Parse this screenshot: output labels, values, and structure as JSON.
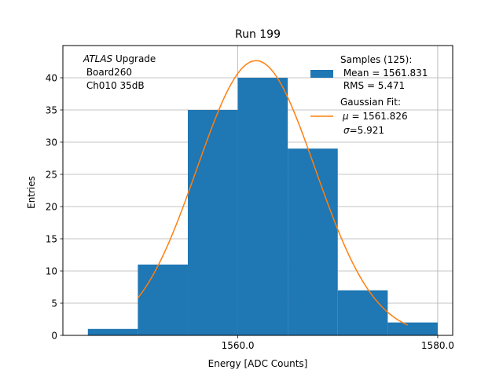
{
  "chart_data": {
    "type": "bar",
    "title": "Run 199",
    "xlabel": "Energy [ADC Counts]",
    "ylabel": "Entries",
    "xlim": [
      1542.5,
      1581.5
    ],
    "ylim": [
      0,
      45
    ],
    "grid": true,
    "bins": [
      {
        "lo": 1545,
        "hi": 1550,
        "count": 1
      },
      {
        "lo": 1550,
        "hi": 1555,
        "count": 11
      },
      {
        "lo": 1555,
        "hi": 1560,
        "count": 35
      },
      {
        "lo": 1560,
        "hi": 1565,
        "count": 40
      },
      {
        "lo": 1565,
        "hi": 1570,
        "count": 29
      },
      {
        "lo": 1570,
        "hi": 1575,
        "count": 7
      },
      {
        "lo": 1575,
        "hi": 1580,
        "count": 2
      }
    ],
    "xticks": [
      {
        "value": 1560,
        "label": "1560.0"
      },
      {
        "value": 1580,
        "label": "1580.0"
      }
    ],
    "yticks": [
      {
        "value": 0,
        "label": "0"
      },
      {
        "value": 5,
        "label": "5"
      },
      {
        "value": 10,
        "label": "10"
      },
      {
        "value": 15,
        "label": "15"
      },
      {
        "value": 20,
        "label": "20"
      },
      {
        "value": 25,
        "label": "25"
      },
      {
        "value": 30,
        "label": "30"
      },
      {
        "value": 35,
        "label": "35"
      },
      {
        "value": 40,
        "label": "40"
      }
    ],
    "fit": {
      "name": "Gaussian Fit",
      "amplitude": 42.65,
      "mu": 1561.826,
      "sigma": 5.921,
      "x_range": [
        1550,
        1577
      ]
    },
    "legend": {
      "placement": "top-right",
      "hist_lines": [
        "Samples (125):",
        " Mean = 1561.831",
        " RMS = 5.471"
      ],
      "fit_lines": [
        "Gaussian Fit:",
        " = 1561.826",
        "=5.921"
      ],
      "fit_mu_symbol": "μ",
      "fit_sigma_symbol": "σ"
    },
    "annotation": {
      "experiment": "ATLAS",
      "line1_rest": " Upgrade",
      "line2": " Board260",
      "line3": " Ch010 35dB"
    },
    "colors": {
      "hist": "#1f77b4",
      "fit": "#ff7f0e",
      "grid": "#b0b0b0",
      "axis": "#000000"
    }
  }
}
